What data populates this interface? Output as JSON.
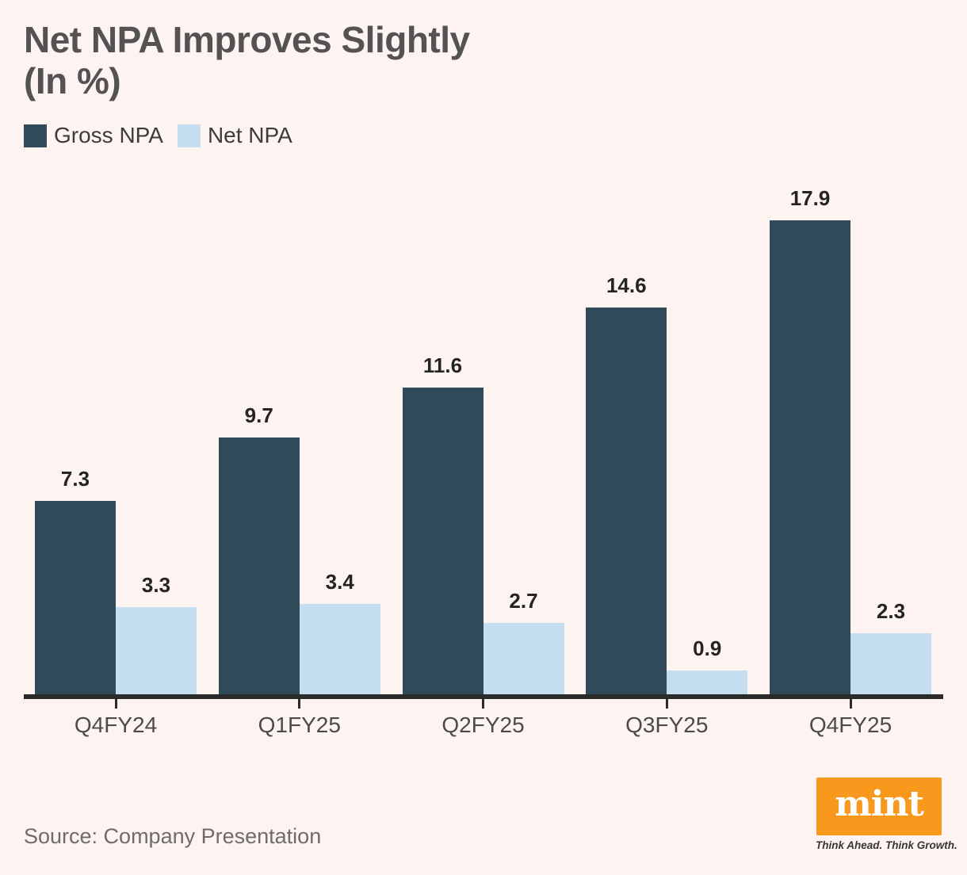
{
  "title": {
    "line1": "Net NPA Improves Slightly",
    "line2": "(In %)"
  },
  "legend": [
    {
      "label": "Gross NPA",
      "color": "#304a59"
    },
    {
      "label": "Net NPA",
      "color": "#c5deef"
    }
  ],
  "chart_data": {
    "type": "bar",
    "title": "Net NPA Improves Slightly (In %)",
    "categories": [
      "Q4FY24",
      "Q1FY25",
      "Q2FY25",
      "Q3FY25",
      "Q4FY25"
    ],
    "series": [
      {
        "name": "Gross NPA",
        "color": "#304a59",
        "values": [
          7.3,
          9.7,
          11.6,
          14.6,
          17.9
        ]
      },
      {
        "name": "Net NPA",
        "color": "#c5deef",
        "values": [
          3.3,
          3.4,
          2.7,
          0.9,
          2.3
        ]
      }
    ],
    "xlabel": "",
    "ylabel": "",
    "ylim": [
      0,
      19
    ],
    "grid": false,
    "value_labels": true,
    "legend_position": "top-left",
    "axis_color": "#2b2b2b",
    "background_color": "#fdf4f2"
  },
  "source": {
    "text": "Source: Company Presentation"
  },
  "branding": {
    "logo_text": "mint",
    "logo_bg": "#f8991d",
    "tagline": "Think Ahead. Think Growth."
  }
}
